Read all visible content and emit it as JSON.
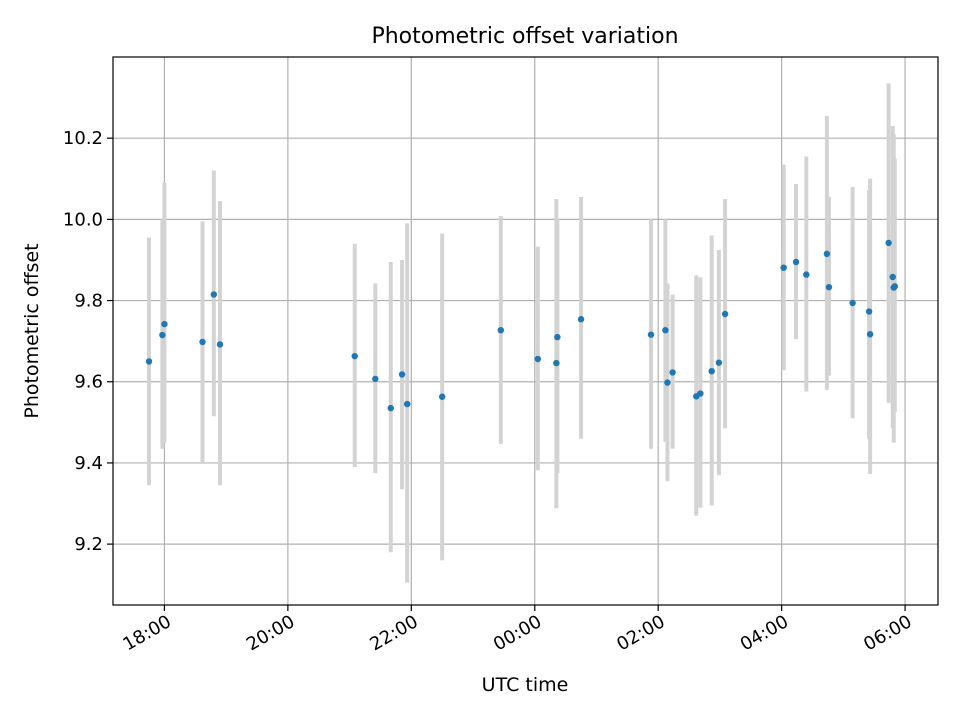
{
  "chart_data": {
    "type": "scatter",
    "title": "Photometric offset variation",
    "xlabel": "UTC time",
    "ylabel": "Photometric offset",
    "x_unit": "UTC time, HH:MM (time after 00:00 spans into next day)",
    "xlim": [
      "17:10",
      "06:32"
    ],
    "ylim": [
      9.05,
      10.4
    ],
    "grid": true,
    "x_ticks": [
      "18:00",
      "20:00",
      "22:00",
      "00:00",
      "02:00",
      "04:00",
      "06:00"
    ],
    "y_ticks": [
      "9.2",
      "9.4",
      "9.6",
      "9.8",
      "10.0",
      "10.2"
    ],
    "colors": {
      "points": "#1f77b4",
      "error_bars": "#d3d3d3",
      "grid": "#b0b0b0"
    },
    "points": [
      {
        "x": "17:45",
        "y": 9.65,
        "yerr_low": 9.345,
        "yerr_high": 9.955
      },
      {
        "x": "17:58",
        "y": 9.715,
        "yerr_low": 9.435,
        "yerr_high": 10.0
      },
      {
        "x": "18:00",
        "y": 9.742,
        "yerr_low": 9.45,
        "yerr_high": 10.09
      },
      {
        "x": "18:37",
        "y": 9.698,
        "yerr_low": 9.4,
        "yerr_high": 9.995
      },
      {
        "x": "18:48",
        "y": 9.815,
        "yerr_low": 9.515,
        "yerr_high": 10.12
      },
      {
        "x": "18:54",
        "y": 9.692,
        "yerr_low": 9.345,
        "yerr_high": 10.045
      },
      {
        "x": "21:05",
        "y": 9.663,
        "yerr_low": 9.39,
        "yerr_high": 9.94
      },
      {
        "x": "21:25",
        "y": 9.607,
        "yerr_low": 9.375,
        "yerr_high": 9.842
      },
      {
        "x": "21:40",
        "y": 9.535,
        "yerr_low": 9.18,
        "yerr_high": 9.895
      },
      {
        "x": "21:51",
        "y": 9.618,
        "yerr_low": 9.335,
        "yerr_high": 9.9
      },
      {
        "x": "21:56",
        "y": 9.545,
        "yerr_low": 9.105,
        "yerr_high": 9.99
      },
      {
        "x": "22:30",
        "y": 9.563,
        "yerr_low": 9.16,
        "yerr_high": 9.965
      },
      {
        "x": "23:27",
        "y": 9.727,
        "yerr_low": 9.447,
        "yerr_high": 10.008
      },
      {
        "x": "00:03",
        "y": 9.656,
        "yerr_low": 9.382,
        "yerr_high": 9.933
      },
      {
        "x": "00:21",
        "y": 9.646,
        "yerr_low": 9.288,
        "yerr_high": 10.05
      },
      {
        "x": "00:22",
        "y": 9.71,
        "yerr_low": 9.375,
        "yerr_high": 10.0
      },
      {
        "x": "00:45",
        "y": 9.754,
        "yerr_low": 9.46,
        "yerr_high": 10.055
      },
      {
        "x": "01:53",
        "y": 9.716,
        "yerr_low": 9.435,
        "yerr_high": 10.0
      },
      {
        "x": "02:07",
        "y": 9.727,
        "yerr_low": 9.452,
        "yerr_high": 10.0
      },
      {
        "x": "02:09",
        "y": 9.598,
        "yerr_low": 9.355,
        "yerr_high": 9.842
      },
      {
        "x": "02:14",
        "y": 9.623,
        "yerr_low": 9.435,
        "yerr_high": 9.815
      },
      {
        "x": "02:37",
        "y": 9.564,
        "yerr_low": 9.27,
        "yerr_high": 9.862
      },
      {
        "x": "02:41",
        "y": 9.571,
        "yerr_low": 9.29,
        "yerr_high": 9.857
      },
      {
        "x": "02:52",
        "y": 9.626,
        "yerr_low": 9.295,
        "yerr_high": 9.96
      },
      {
        "x": "02:59",
        "y": 9.647,
        "yerr_low": 9.37,
        "yerr_high": 9.925
      },
      {
        "x": "03:05",
        "y": 9.767,
        "yerr_low": 9.485,
        "yerr_high": 10.05
      },
      {
        "x": "04:02",
        "y": 9.881,
        "yerr_low": 9.628,
        "yerr_high": 10.135
      },
      {
        "x": "04:14",
        "y": 9.895,
        "yerr_low": 9.705,
        "yerr_high": 10.087
      },
      {
        "x": "04:24",
        "y": 9.864,
        "yerr_low": 9.576,
        "yerr_high": 10.155
      },
      {
        "x": "04:44",
        "y": 9.915,
        "yerr_low": 9.58,
        "yerr_high": 10.255
      },
      {
        "x": "04:46",
        "y": 9.833,
        "yerr_low": 9.615,
        "yerr_high": 10.055
      },
      {
        "x": "05:09",
        "y": 9.794,
        "yerr_low": 9.51,
        "yerr_high": 10.08
      },
      {
        "x": "05:25",
        "y": 9.773,
        "yerr_low": 9.46,
        "yerr_high": 10.072
      },
      {
        "x": "05:26",
        "y": 9.717,
        "yerr_low": 9.373,
        "yerr_high": 10.1
      },
      {
        "x": "05:44",
        "y": 9.942,
        "yerr_low": 9.548,
        "yerr_high": 10.335
      },
      {
        "x": "05:48",
        "y": 9.858,
        "yerr_low": 9.485,
        "yerr_high": 10.23
      },
      {
        "x": "05:49",
        "y": 9.832,
        "yerr_low": 9.45,
        "yerr_high": 10.21
      },
      {
        "x": "05:50",
        "y": 9.835,
        "yerr_low": 9.525,
        "yerr_high": 10.15
      }
    ]
  }
}
